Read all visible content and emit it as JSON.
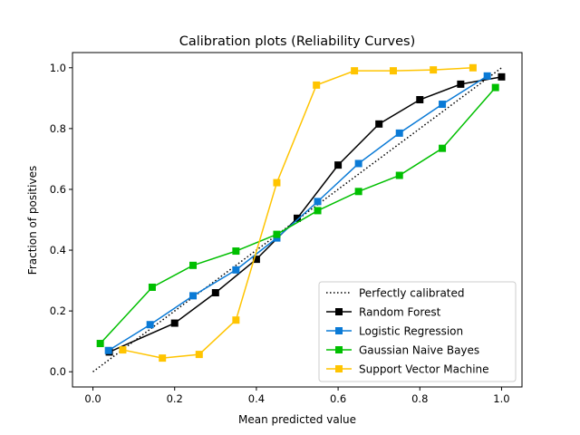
{
  "chart_data": {
    "type": "line",
    "title": "Calibration plots (Reliability Curves)",
    "xlabel": "Mean predicted value",
    "ylabel": "Fraction of positives",
    "xlim": [
      -0.05,
      1.05
    ],
    "ylim": [
      -0.05,
      1.05
    ],
    "xticks": [
      "0.0",
      "0.2",
      "0.4",
      "0.6",
      "0.8",
      "1.0"
    ],
    "yticks": [
      "0.0",
      "0.2",
      "0.4",
      "0.6",
      "0.8",
      "1.0"
    ],
    "grid": false,
    "legend_position": "lower-right",
    "series": [
      {
        "name": "Perfectly calibrated",
        "color": "#000000",
        "style": "dotted",
        "marker": "none",
        "x": [
          0,
          1
        ],
        "y": [
          0,
          1
        ]
      },
      {
        "name": "Random Forest",
        "color": "#000000",
        "style": "solid",
        "marker": "square",
        "x": [
          0.04,
          0.2,
          0.3,
          0.4,
          0.5,
          0.6,
          0.7,
          0.8,
          0.9,
          1.0
        ],
        "y": [
          0.065,
          0.16,
          0.26,
          0.37,
          0.505,
          0.68,
          0.815,
          0.895,
          0.946,
          0.97
        ]
      },
      {
        "name": "Logistic Regression",
        "color": "#0a7ad6",
        "style": "solid",
        "marker": "square",
        "x": [
          0.038,
          0.14,
          0.245,
          0.35,
          0.45,
          0.55,
          0.65,
          0.75,
          0.855,
          0.965
        ],
        "y": [
          0.07,
          0.155,
          0.25,
          0.335,
          0.44,
          0.56,
          0.685,
          0.785,
          0.88,
          0.973
        ]
      },
      {
        "name": "Gaussian Naive Bayes",
        "color": "#00bf00",
        "style": "solid",
        "marker": "square",
        "x": [
          0.018,
          0.145,
          0.245,
          0.35,
          0.45,
          0.55,
          0.65,
          0.75,
          0.855,
          0.985
        ],
        "y": [
          0.093,
          0.278,
          0.35,
          0.397,
          0.452,
          0.53,
          0.593,
          0.646,
          0.735,
          0.935
        ]
      },
      {
        "name": "Support Vector Machine",
        "color": "#ffc400",
        "style": "solid",
        "marker": "square",
        "x": [
          0.073,
          0.17,
          0.26,
          0.35,
          0.45,
          0.547,
          0.64,
          0.735,
          0.833,
          0.93
        ],
        "y": [
          0.072,
          0.045,
          0.057,
          0.17,
          0.622,
          0.943,
          0.99,
          0.99,
          0.993,
          1.0
        ]
      }
    ]
  }
}
